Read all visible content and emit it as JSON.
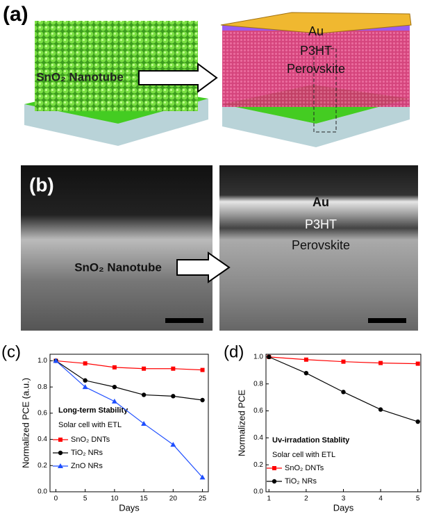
{
  "panel_a": {
    "label": "(a)",
    "left_text": "SnO₂ Nanotube",
    "right_texts": [
      "Au",
      "P3HT",
      "Perovskite"
    ]
  },
  "panel_b": {
    "label": "(b)",
    "left_text": "SnO₂ Nanotube",
    "right_texts": [
      "Au",
      "P3HT",
      "Perovskite"
    ]
  },
  "chart_data": [
    {
      "type": "line",
      "panel_label": "(c)",
      "x_label": "Days",
      "y_label": "Normalized PCE (a.u.)",
      "annotations": [
        "Long-term Stability",
        "Solar cell with ETL"
      ],
      "x": [
        0,
        5,
        10,
        15,
        20,
        25
      ],
      "series": [
        {
          "name": "SnO₂ DNTs",
          "color": "#ff0000",
          "marker": "square",
          "values": [
            1.0,
            0.98,
            0.95,
            0.94,
            0.94,
            0.93
          ]
        },
        {
          "name": "TiO₂  NRs",
          "color": "#000000",
          "marker": "circle",
          "values": [
            1.0,
            0.85,
            0.8,
            0.74,
            0.73,
            0.7
          ]
        },
        {
          "name": "ZnO  NRs",
          "color": "#1f4fff",
          "marker": "triangle",
          "values": [
            1.0,
            0.8,
            0.69,
            0.52,
            0.36,
            0.11
          ]
        }
      ],
      "xlim": [
        -1,
        26
      ],
      "xticks": [
        0,
        5,
        10,
        15,
        20,
        25
      ],
      "ylim": [
        0,
        1.05
      ],
      "yticks": [
        {
          "value": 0,
          "label": "0.0"
        },
        0.2,
        0.4,
        0.6,
        0.8,
        {
          "value": 1,
          "label": "1.0"
        }
      ]
    },
    {
      "type": "line",
      "panel_label": "(d)",
      "x_label": "Days",
      "y_label": "Normalized PCE",
      "annotations": [
        "Uv-irradation Stablity",
        "Solar cell with ETL"
      ],
      "x": [
        1,
        2,
        3,
        4,
        5
      ],
      "series": [
        {
          "name": "SnO₂ DNTs",
          "color": "#ff0000",
          "marker": "square",
          "values": [
            1.0,
            0.98,
            0.965,
            0.955,
            0.95
          ]
        },
        {
          "name": "TiO₂  NRs",
          "color": "#000000",
          "marker": "circle",
          "values": [
            1.0,
            0.88,
            0.74,
            0.61,
            0.52
          ]
        }
      ],
      "xlim": [
        0.92,
        5.08
      ],
      "xticks": [
        1,
        2,
        3,
        4,
        5
      ],
      "ylim": [
        0,
        1.02
      ],
      "yticks": [
        {
          "value": 0,
          "label": "0.0"
        },
        0.2,
        0.4,
        0.6,
        0.8,
        {
          "value": 1,
          "label": "1.0"
        }
      ]
    }
  ]
}
